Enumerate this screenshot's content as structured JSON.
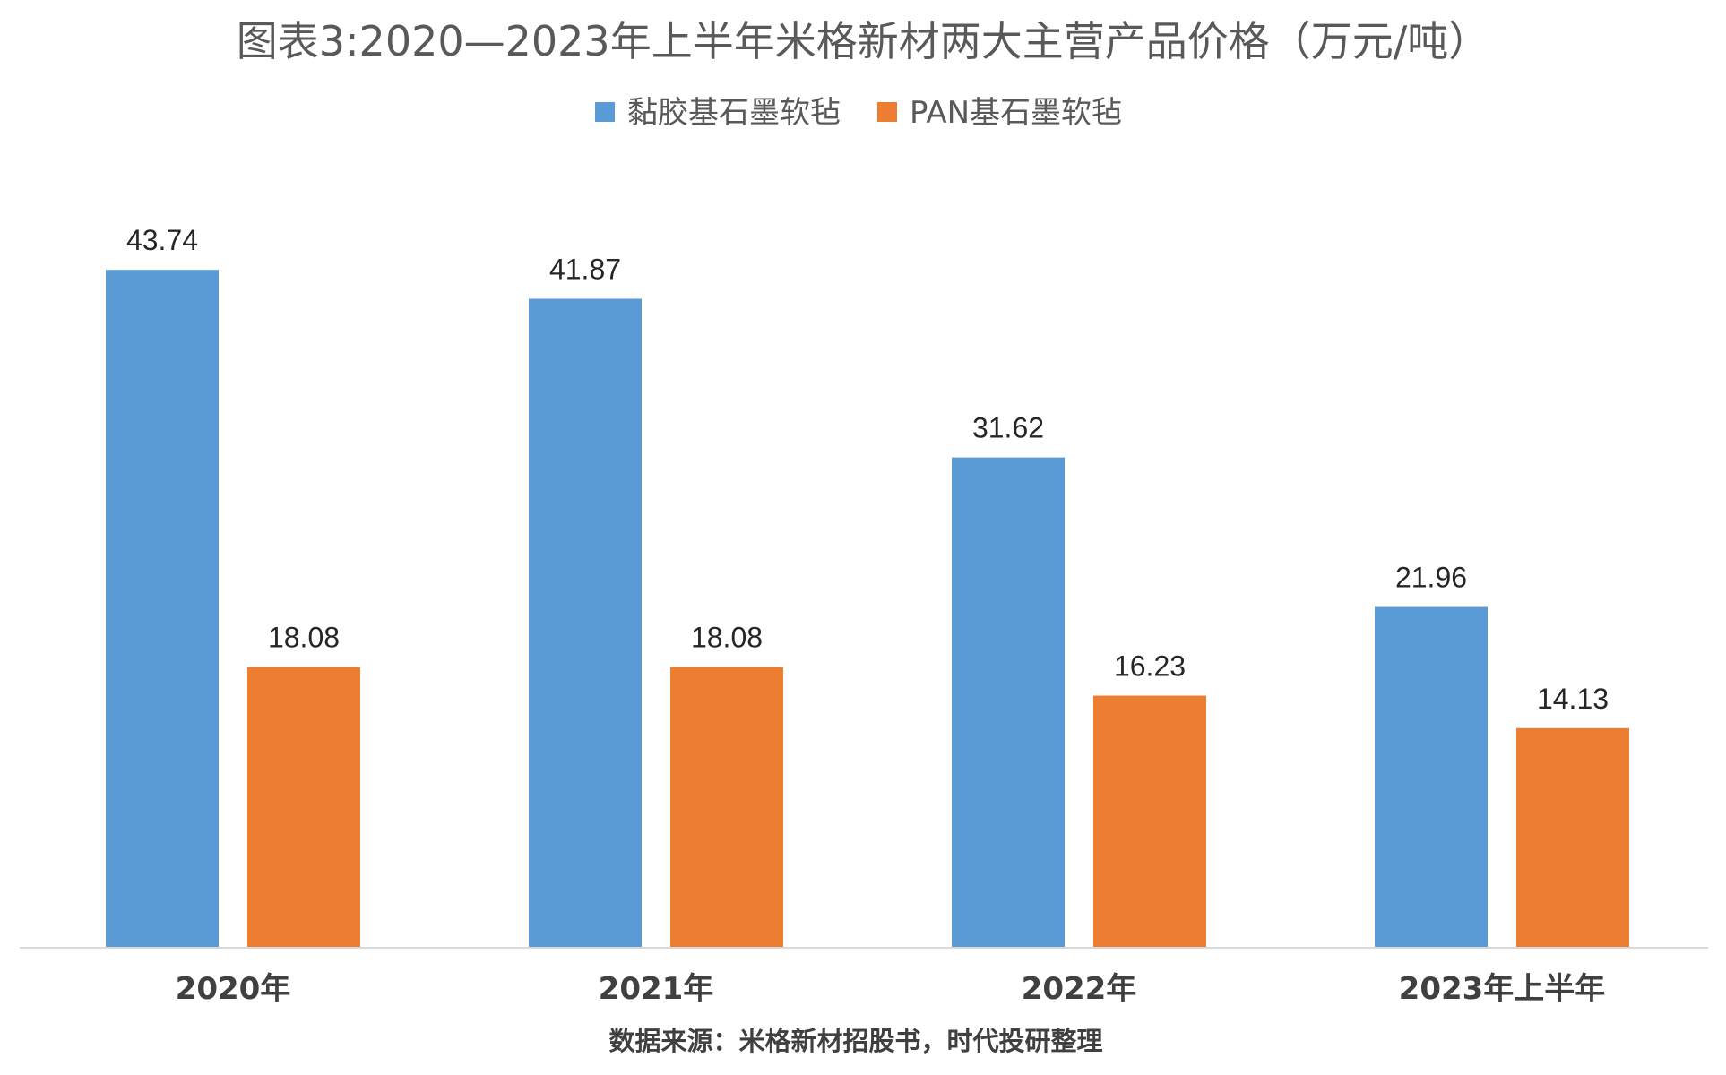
{
  "chart_data": {
    "type": "bar",
    "title": "图表3:2020—2023年上半年米格新材两大主营产品价格（万元/吨）",
    "categories": [
      "2020年",
      "2021年",
      "2022年",
      "2023年上半年"
    ],
    "series": [
      {
        "name": "黏胶基石墨软毡",
        "color": "#5B9BD5",
        "values": [
          43.74,
          41.87,
          31.62,
          21.96
        ]
      },
      {
        "name": "PAN基石墨软毡",
        "color": "#ED7D31",
        "values": [
          18.08,
          18.08,
          16.23,
          14.13
        ]
      }
    ],
    "data_labels": [
      [
        "43.74",
        "41.87",
        "31.62",
        "21.96"
      ],
      [
        "18.08",
        "18.08",
        "16.23",
        "14.13"
      ]
    ],
    "xlabel": "",
    "ylabel": "",
    "ylim": [
      0,
      50
    ],
    "grid": false,
    "legend_position": "top-center",
    "source": "数据来源：米格新材招股书，时代投研整理"
  }
}
